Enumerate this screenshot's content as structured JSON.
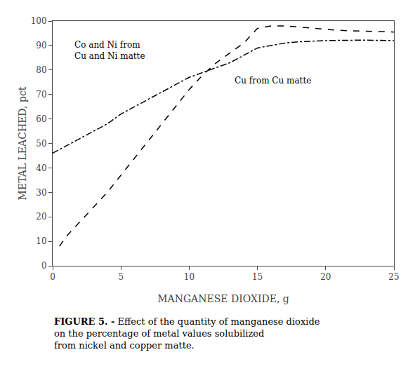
{
  "chart_data": {
    "type": "line",
    "x_label": "MANGANESE DIOXIDE, g",
    "y_label": "METAL LEACHED, pct",
    "series": [
      {
        "x": [
          0,
          1,
          2,
          3,
          4,
          5,
          6,
          7,
          8,
          9,
          10,
          11,
          12,
          13,
          14,
          15,
          16,
          17,
          18,
          19,
          20,
          21,
          22,
          23,
          24,
          25
        ],
        "values": [
          46,
          49,
          52,
          55,
          58,
          62,
          65,
          68,
          71,
          74,
          77,
          79,
          81,
          83,
          86,
          89,
          90,
          91,
          91.5,
          91.8,
          92,
          92.1,
          92.2,
          92.2,
          92.1,
          92.0
        ],
        "color": "#000000",
        "line_style": "dashdot"
      },
      {
        "x": [
          0.5,
          1,
          2,
          3,
          4,
          5,
          6,
          7,
          8,
          9,
          10,
          11,
          12,
          13,
          14,
          15,
          16,
          17,
          18,
          19,
          20,
          21,
          22,
          23,
          24,
          25
        ],
        "values": [
          8,
          12,
          18,
          24,
          30,
          37,
          44,
          51,
          58,
          65,
          72,
          78,
          83,
          87,
          91,
          97,
          98,
          98,
          97.5,
          97,
          96.5,
          96.2,
          96.0,
          95.8,
          95.7,
          95.5
        ],
        "color": "#000000",
        "line_style": "dash"
      }
    ],
    "annotations": [
      {
        "text": "Co and Ni from\nCu and Ni matte",
        "x": 1.5,
        "y": 83
      },
      {
        "text": "Cu from Cu matte",
        "x": 13.2,
        "y": 73
      }
    ],
    "caption_label": "FIGURE 5. -",
    "caption": [
      "Effect of the quantity of manganese dioxide",
      "on the percentage of metal values solubilized",
      "from nickel and copper matte."
    ],
    "xlim": [
      0,
      25
    ],
    "ylim": [
      0,
      100
    ],
    "xticks": [
      0,
      5,
      10,
      15,
      20,
      25
    ],
    "yticks": [
      0,
      10,
      20,
      30,
      40,
      50,
      60,
      70,
      80,
      90,
      100
    ],
    "grid": false
  }
}
